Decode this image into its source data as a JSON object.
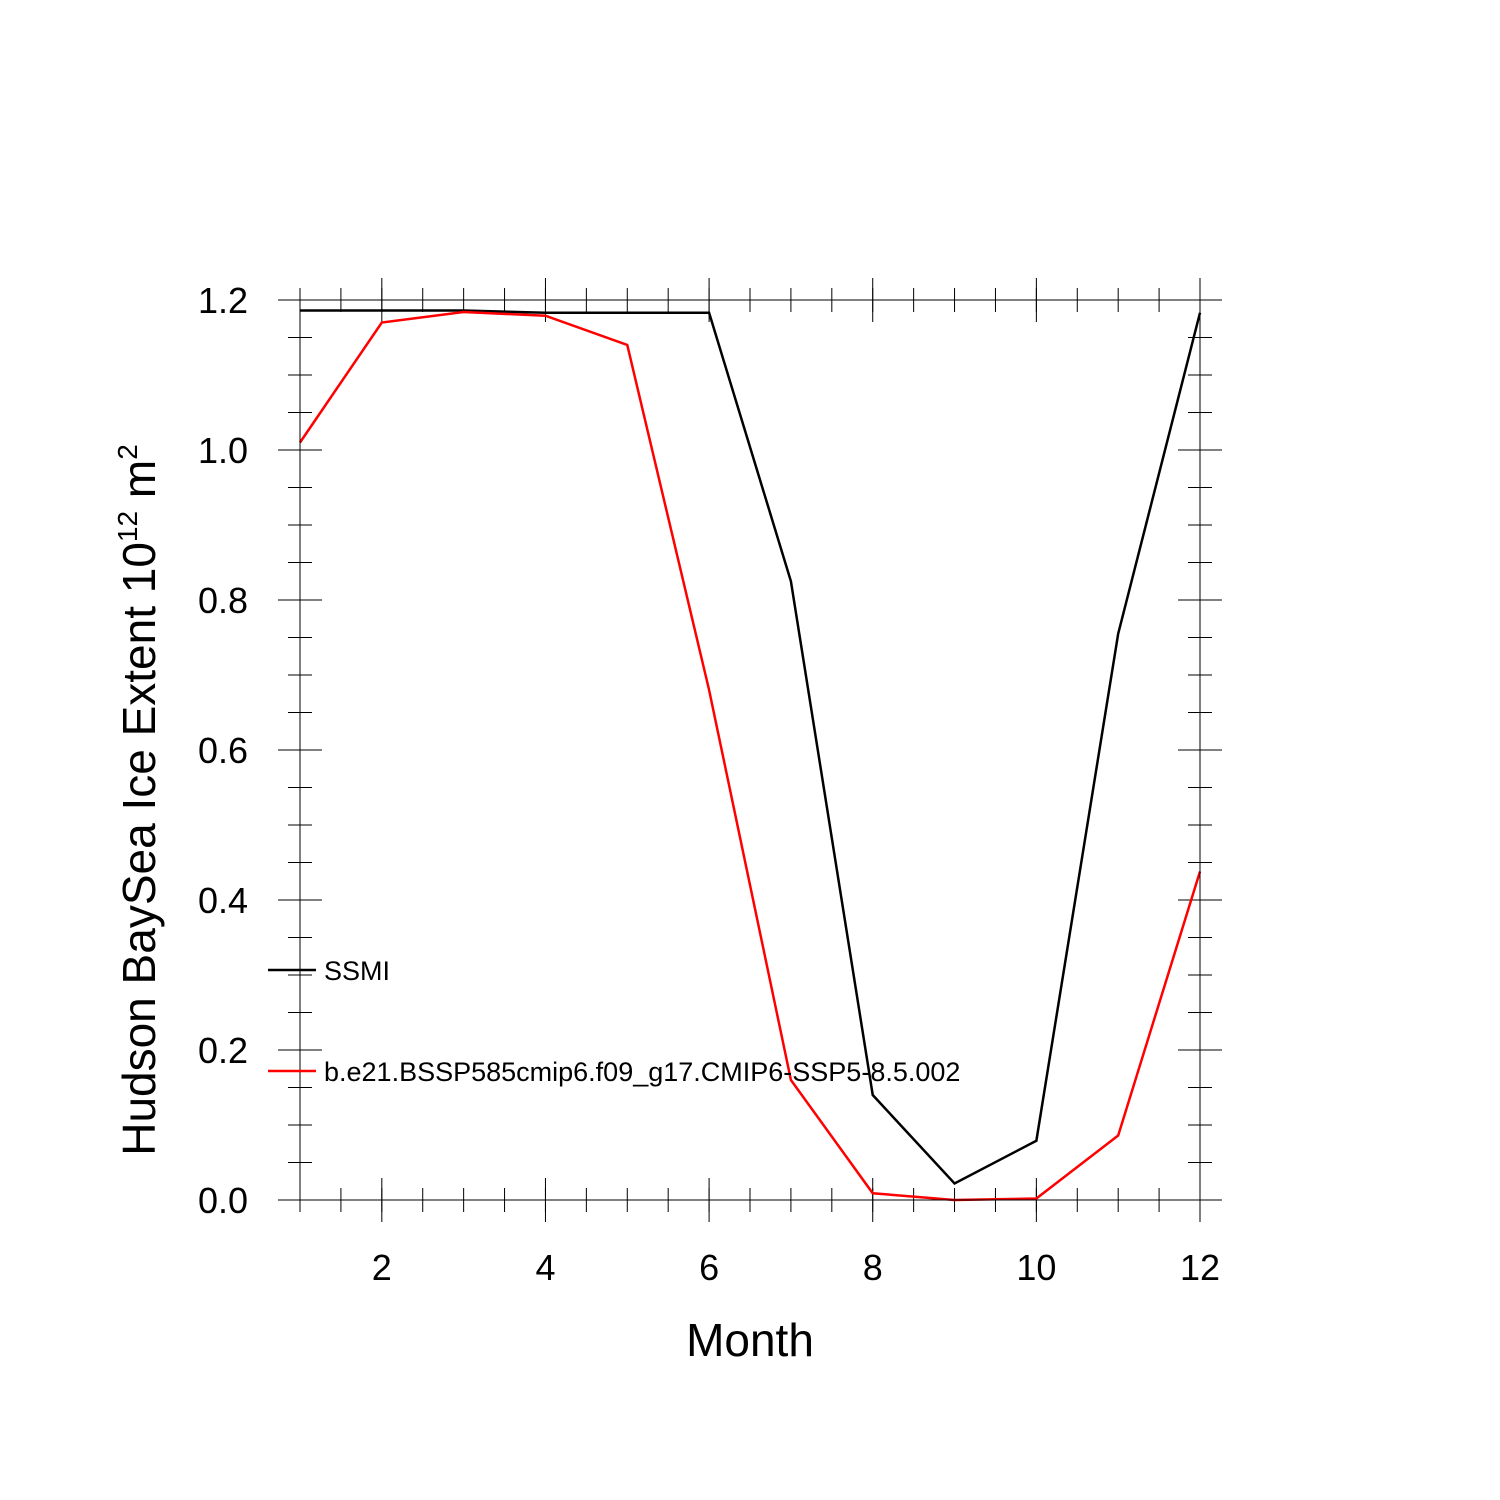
{
  "chart_data": {
    "type": "line",
    "xlabel": "Month",
    "ylabel": {
      "base": "Hudson BaySea Ice Extent 10",
      "exp1": "12",
      "unit": " m",
      "exp2": "2"
    },
    "xlim": [
      1,
      12
    ],
    "ylim": [
      0,
      1.2
    ],
    "xticks": [
      2,
      4,
      6,
      8,
      10,
      12
    ],
    "xtick_labels": [
      "2",
      "4",
      "6",
      "8",
      "10",
      "12"
    ],
    "yticks": [
      0,
      0.2,
      0.4,
      0.6,
      0.8,
      1.0,
      1.2
    ],
    "ytick_labels": [
      "0.0",
      "0.2",
      "0.4",
      "0.6",
      "0.8",
      "1.0",
      "1.2"
    ],
    "x": [
      1,
      2,
      3,
      4,
      5,
      6,
      7,
      8,
      9,
      10,
      11,
      12
    ],
    "series": [
      {
        "name": "SSMI",
        "color": "#000000",
        "values": [
          1.186,
          1.186,
          1.186,
          1.183,
          1.183,
          1.183,
          0.825,
          0.14,
          0.022,
          0.079,
          0.755,
          1.183
        ]
      },
      {
        "name": "b.e21.BSSP585cmip6.f09_g17.CMIP6-SSP5-8.5.002",
        "color": "#ff0000",
        "values": [
          1.01,
          1.17,
          1.184,
          1.179,
          1.14,
          0.68,
          0.16,
          0.009,
          0.0,
          0.002,
          0.086,
          0.438
        ]
      }
    ],
    "legend_placement": "lower-left inside",
    "grid": false
  }
}
